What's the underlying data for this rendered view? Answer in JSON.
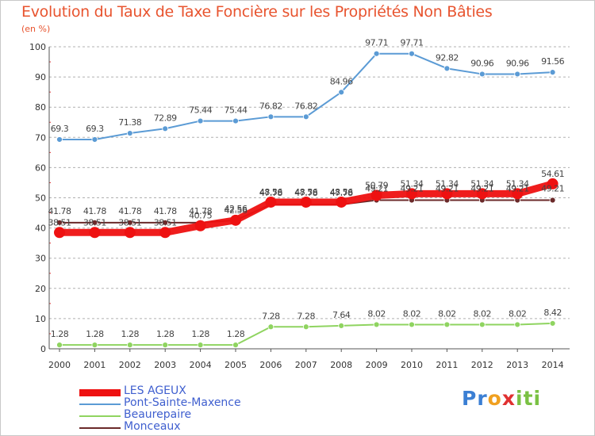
{
  "title": "Evolution du Taux de Taxe Foncière sur les Propriétés Non Bâties",
  "subtitle": "(en %)",
  "logo": {
    "letters": [
      "P",
      "r",
      "o",
      "x",
      "i",
      "t",
      "i"
    ],
    "colors": [
      "#3b7fd4",
      "#3b7fd4",
      "#f0a020",
      "#e03030",
      "#7ac143",
      "#7ac143",
      "#7ac143"
    ]
  },
  "colors": {
    "title": "#e8542f",
    "axis": "#555555",
    "grid": "#b0b0b0",
    "legend_text": "#3f5fcf"
  },
  "chart_data": {
    "type": "line",
    "x": [
      "2000",
      "2001",
      "2002",
      "2003",
      "2004",
      "2005",
      "2006",
      "2007",
      "2008",
      "2009",
      "2010",
      "2011",
      "2012",
      "2013",
      "2014"
    ],
    "ylim": [
      0,
      100
    ],
    "yticks": [
      "0",
      "10",
      "20",
      "30",
      "40",
      "50",
      "60",
      "70",
      "80",
      "90",
      "100"
    ],
    "grid": "horizontal-dashed",
    "legend_position": "bottom-left",
    "series": [
      {
        "name": "LES AGEUX",
        "color": "#ee1111",
        "values": [
          38.51,
          38.51,
          38.51,
          38.51,
          40.75,
          42.56,
          48.56,
          48.56,
          48.56,
          50.79,
          51.34,
          51.34,
          51.34,
          51.34,
          54.61
        ],
        "labels": [
          "38.51",
          "38.51",
          "38.51",
          "38.51",
          "40.75",
          "42.56",
          "48.56",
          "48.56",
          "48.56",
          "50.79",
          "51.34",
          "51.34",
          "51.34",
          "51.34",
          "54.61"
        ]
      },
      {
        "name": "Pont-Sainte-Maxence",
        "color": "#5b9bd5",
        "values": [
          69.3,
          69.3,
          71.38,
          72.89,
          75.44,
          75.44,
          76.82,
          76.82,
          84.96,
          97.71,
          97.71,
          92.82,
          90.96,
          90.96,
          91.56
        ],
        "labels": [
          "69.3",
          "69.3",
          "71.38",
          "72.89",
          "75.44",
          "75.44",
          "76.82",
          "76.82",
          "84.96",
          "97.71",
          "97.71",
          "92.82",
          "90.96",
          "90.96",
          "91.56"
        ]
      },
      {
        "name": "Beaurepaire",
        "color": "#8fd460",
        "values": [
          1.28,
          1.28,
          1.28,
          1.28,
          1.28,
          1.28,
          7.28,
          7.28,
          7.64,
          8.02,
          8.02,
          8.02,
          8.02,
          8.02,
          8.42
        ],
        "labels": [
          "1.28",
          "1.28",
          "1.28",
          "1.28",
          "1.28",
          "1.28",
          "7.28",
          "7.28",
          "7.64",
          "8.02",
          "8.02",
          "8.02",
          "8.02",
          "8.02",
          "8.42"
        ]
      },
      {
        "name": "Monceaux",
        "color": "#6b2a2a",
        "values": [
          41.78,
          41.78,
          41.78,
          41.78,
          41.78,
          42.56,
          47.78,
          47.78,
          47.78,
          49.21,
          49.21,
          49.21,
          49.21,
          49.21,
          49.21
        ],
        "labels": [
          "41.78",
          "41.78",
          "41.78",
          "41.78",
          "41.78",
          "42.56",
          "47.78",
          "47.78",
          "47.78",
          "49.21",
          "49.21",
          "49.21",
          "49.21",
          "49.21",
          "49.21"
        ]
      }
    ]
  }
}
